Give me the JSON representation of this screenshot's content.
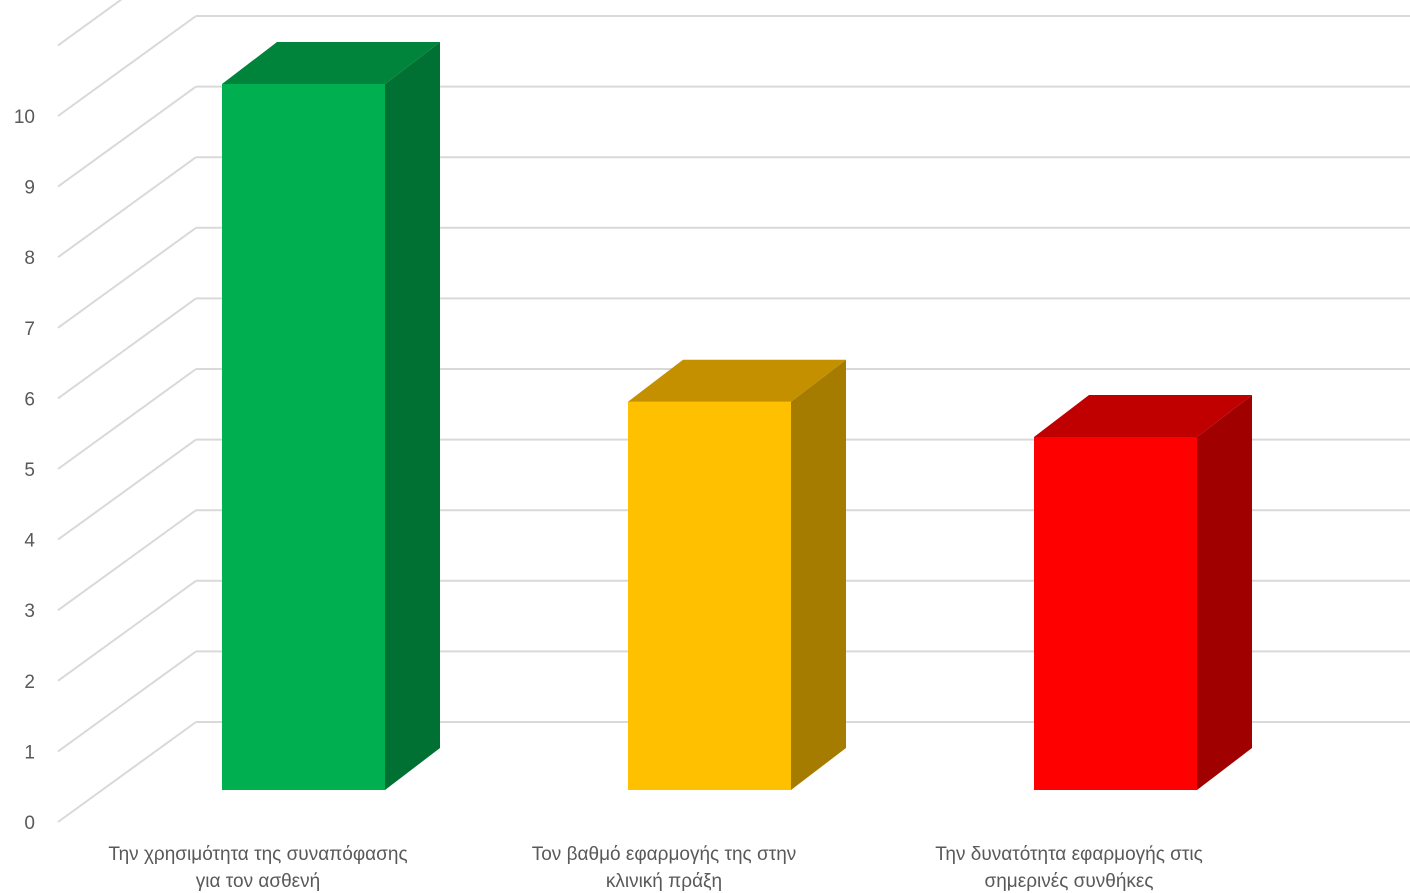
{
  "chart_data": {
    "type": "bar",
    "style": "3d-column",
    "categories": [
      [
        "Την χρησιμότητα της συναπόφασης",
        "για τον ασθενή"
      ],
      [
        "Τον βαθμό εφαρμογής της στην",
        "κλινική πράξη"
      ],
      [
        "Την δυνατότητα εφαρμογής  στις",
        "σημερινές συνθήκες"
      ]
    ],
    "values": [
      10,
      5.5,
      5
    ],
    "ylim": [
      0,
      11
    ],
    "yticks": [
      0,
      1,
      2,
      3,
      4,
      5,
      6,
      7,
      8,
      9,
      10
    ],
    "grid": true,
    "legend": "none",
    "colors": [
      {
        "front": "#00B050",
        "side": "#007033",
        "top": "#00843C"
      },
      {
        "front": "#FFC000",
        "side": "#A67C00",
        "top": "#C49000"
      },
      {
        "front": "#FF0000",
        "side": "#A00000",
        "top": "#C00000"
      }
    ],
    "gridline_color": "#D9D9D9"
  }
}
